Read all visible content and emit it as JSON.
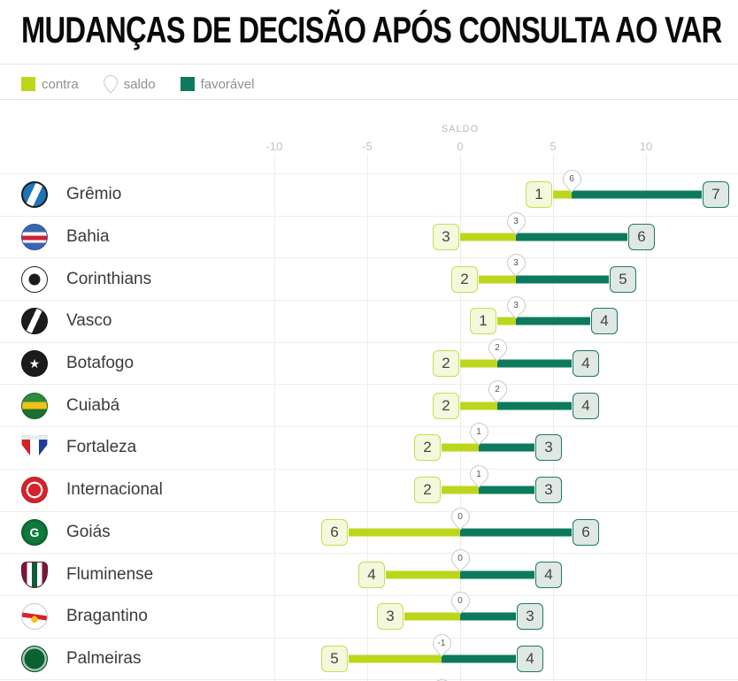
{
  "header": {
    "title": "MUDANÇAS DE DECISÃO APÓS CONSULTA AO VAR"
  },
  "legend": {
    "items": [
      {
        "id": "contra",
        "label": "contra"
      },
      {
        "id": "saldo",
        "label": "saldo"
      },
      {
        "id": "favoravel",
        "label": "favorável"
      }
    ]
  },
  "colors": {
    "contra": "#bcd61c",
    "favoravel": "#0d7a5e",
    "contra_box_bg": "#f4f8dc",
    "contra_box_border": "#ccda52",
    "favoravel_box_bg": "#dfe8e3",
    "favoravel_box_border": "#1e7a62",
    "bubble_border": "#c9c9c9",
    "grid": "#ececec"
  },
  "chart_data": {
    "type": "bar",
    "variant": "dumbbell",
    "title": "MUDANÇAS DE DECISÃO APÓS CONSULTA AO VAR",
    "series_names": [
      "contra",
      "saldo",
      "favorável"
    ],
    "axis": {
      "title": "SALDO",
      "ticks": [
        -10,
        -5,
        0,
        5,
        10
      ],
      "tick_labels": [
        "-10",
        "-5",
        "0",
        "5",
        "10"
      ],
      "xlim": [
        -13,
        15
      ],
      "grid": true,
      "note": "lime bar spans saldo-contra to saldo; green bar spans saldo to saldo+favoravel"
    },
    "teams": [
      {
        "name": "Grêmio",
        "slug": "gremio",
        "contra": 1,
        "saldo": 6,
        "favoravel": 7
      },
      {
        "name": "Bahia",
        "slug": "bahia",
        "contra": 3,
        "saldo": 3,
        "favoravel": 6
      },
      {
        "name": "Corinthians",
        "slug": "corinthians",
        "contra": 2,
        "saldo": 3,
        "favoravel": 5
      },
      {
        "name": "Vasco",
        "slug": "vasco",
        "contra": 1,
        "saldo": 3,
        "favoravel": 4
      },
      {
        "name": "Botafogo",
        "slug": "botafogo",
        "contra": 2,
        "saldo": 2,
        "favoravel": 4
      },
      {
        "name": "Cuiabá",
        "slug": "cuiaba",
        "contra": 2,
        "saldo": 2,
        "favoravel": 4
      },
      {
        "name": "Fortaleza",
        "slug": "fortaleza",
        "contra": 2,
        "saldo": 1,
        "favoravel": 3
      },
      {
        "name": "Internacional",
        "slug": "internacional",
        "contra": 2,
        "saldo": 1,
        "favoravel": 3
      },
      {
        "name": "Goiás",
        "slug": "goias",
        "contra": 6,
        "saldo": 0,
        "favoravel": 6
      },
      {
        "name": "Fluminense",
        "slug": "fluminense",
        "contra": 4,
        "saldo": 0,
        "favoravel": 4
      },
      {
        "name": "Bragantino",
        "slug": "bragantino",
        "contra": 3,
        "saldo": 0,
        "favoravel": 3
      },
      {
        "name": "Palmeiras",
        "slug": "palmeiras",
        "contra": 5,
        "saldo": -1,
        "favoravel": 4
      }
    ],
    "partial_next_row": {
      "visible": true,
      "saldo": -1
    }
  }
}
